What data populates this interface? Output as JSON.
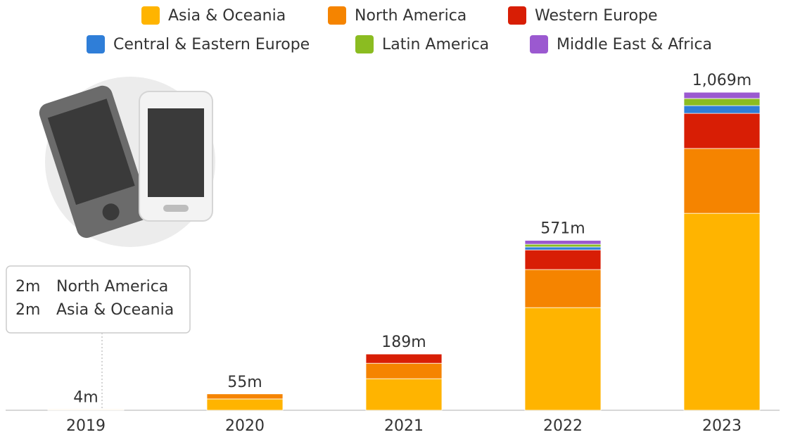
{
  "chart_data": {
    "type": "stacked_bar",
    "categories": [
      "2019",
      "2020",
      "2021",
      "2022",
      "2023"
    ],
    "series": [
      {
        "name": "Asia & Oceania",
        "color": "#ffb400",
        "values": [
          2,
          38,
          106,
          345,
          662
        ]
      },
      {
        "name": "North America",
        "color": "#f58400",
        "values": [
          2,
          17,
          52,
          128,
          218
        ]
      },
      {
        "name": "Western Europe",
        "color": "#d81e05",
        "values": [
          0,
          0,
          31,
          66,
          118
        ]
      },
      {
        "name": "Central & Eastern Europe",
        "color": "#2f7ed8",
        "values": [
          0,
          0,
          0,
          10,
          26
        ]
      },
      {
        "name": "Latin America",
        "color": "#8bbc21",
        "values": [
          0,
          0,
          0,
          9,
          24
        ]
      },
      {
        "name": "Middle East & Africa",
        "color": "#9b59d0",
        "values": [
          0,
          0,
          0,
          13,
          21
        ]
      }
    ],
    "totals": [
      4,
      55,
      189,
      571,
      1069
    ],
    "total_labels": [
      "4m",
      "55m",
      "189m",
      "571m",
      "1,069m"
    ],
    "ylim": [
      0,
      1100
    ],
    "tooltip": {
      "category": "2019",
      "items": [
        {
          "name": "North America",
          "value": 2,
          "label": "2m",
          "color": "#f58400"
        },
        {
          "name": "Asia & Oceania",
          "value": 2,
          "label": "2m",
          "color": "#ffb400"
        }
      ]
    }
  }
}
